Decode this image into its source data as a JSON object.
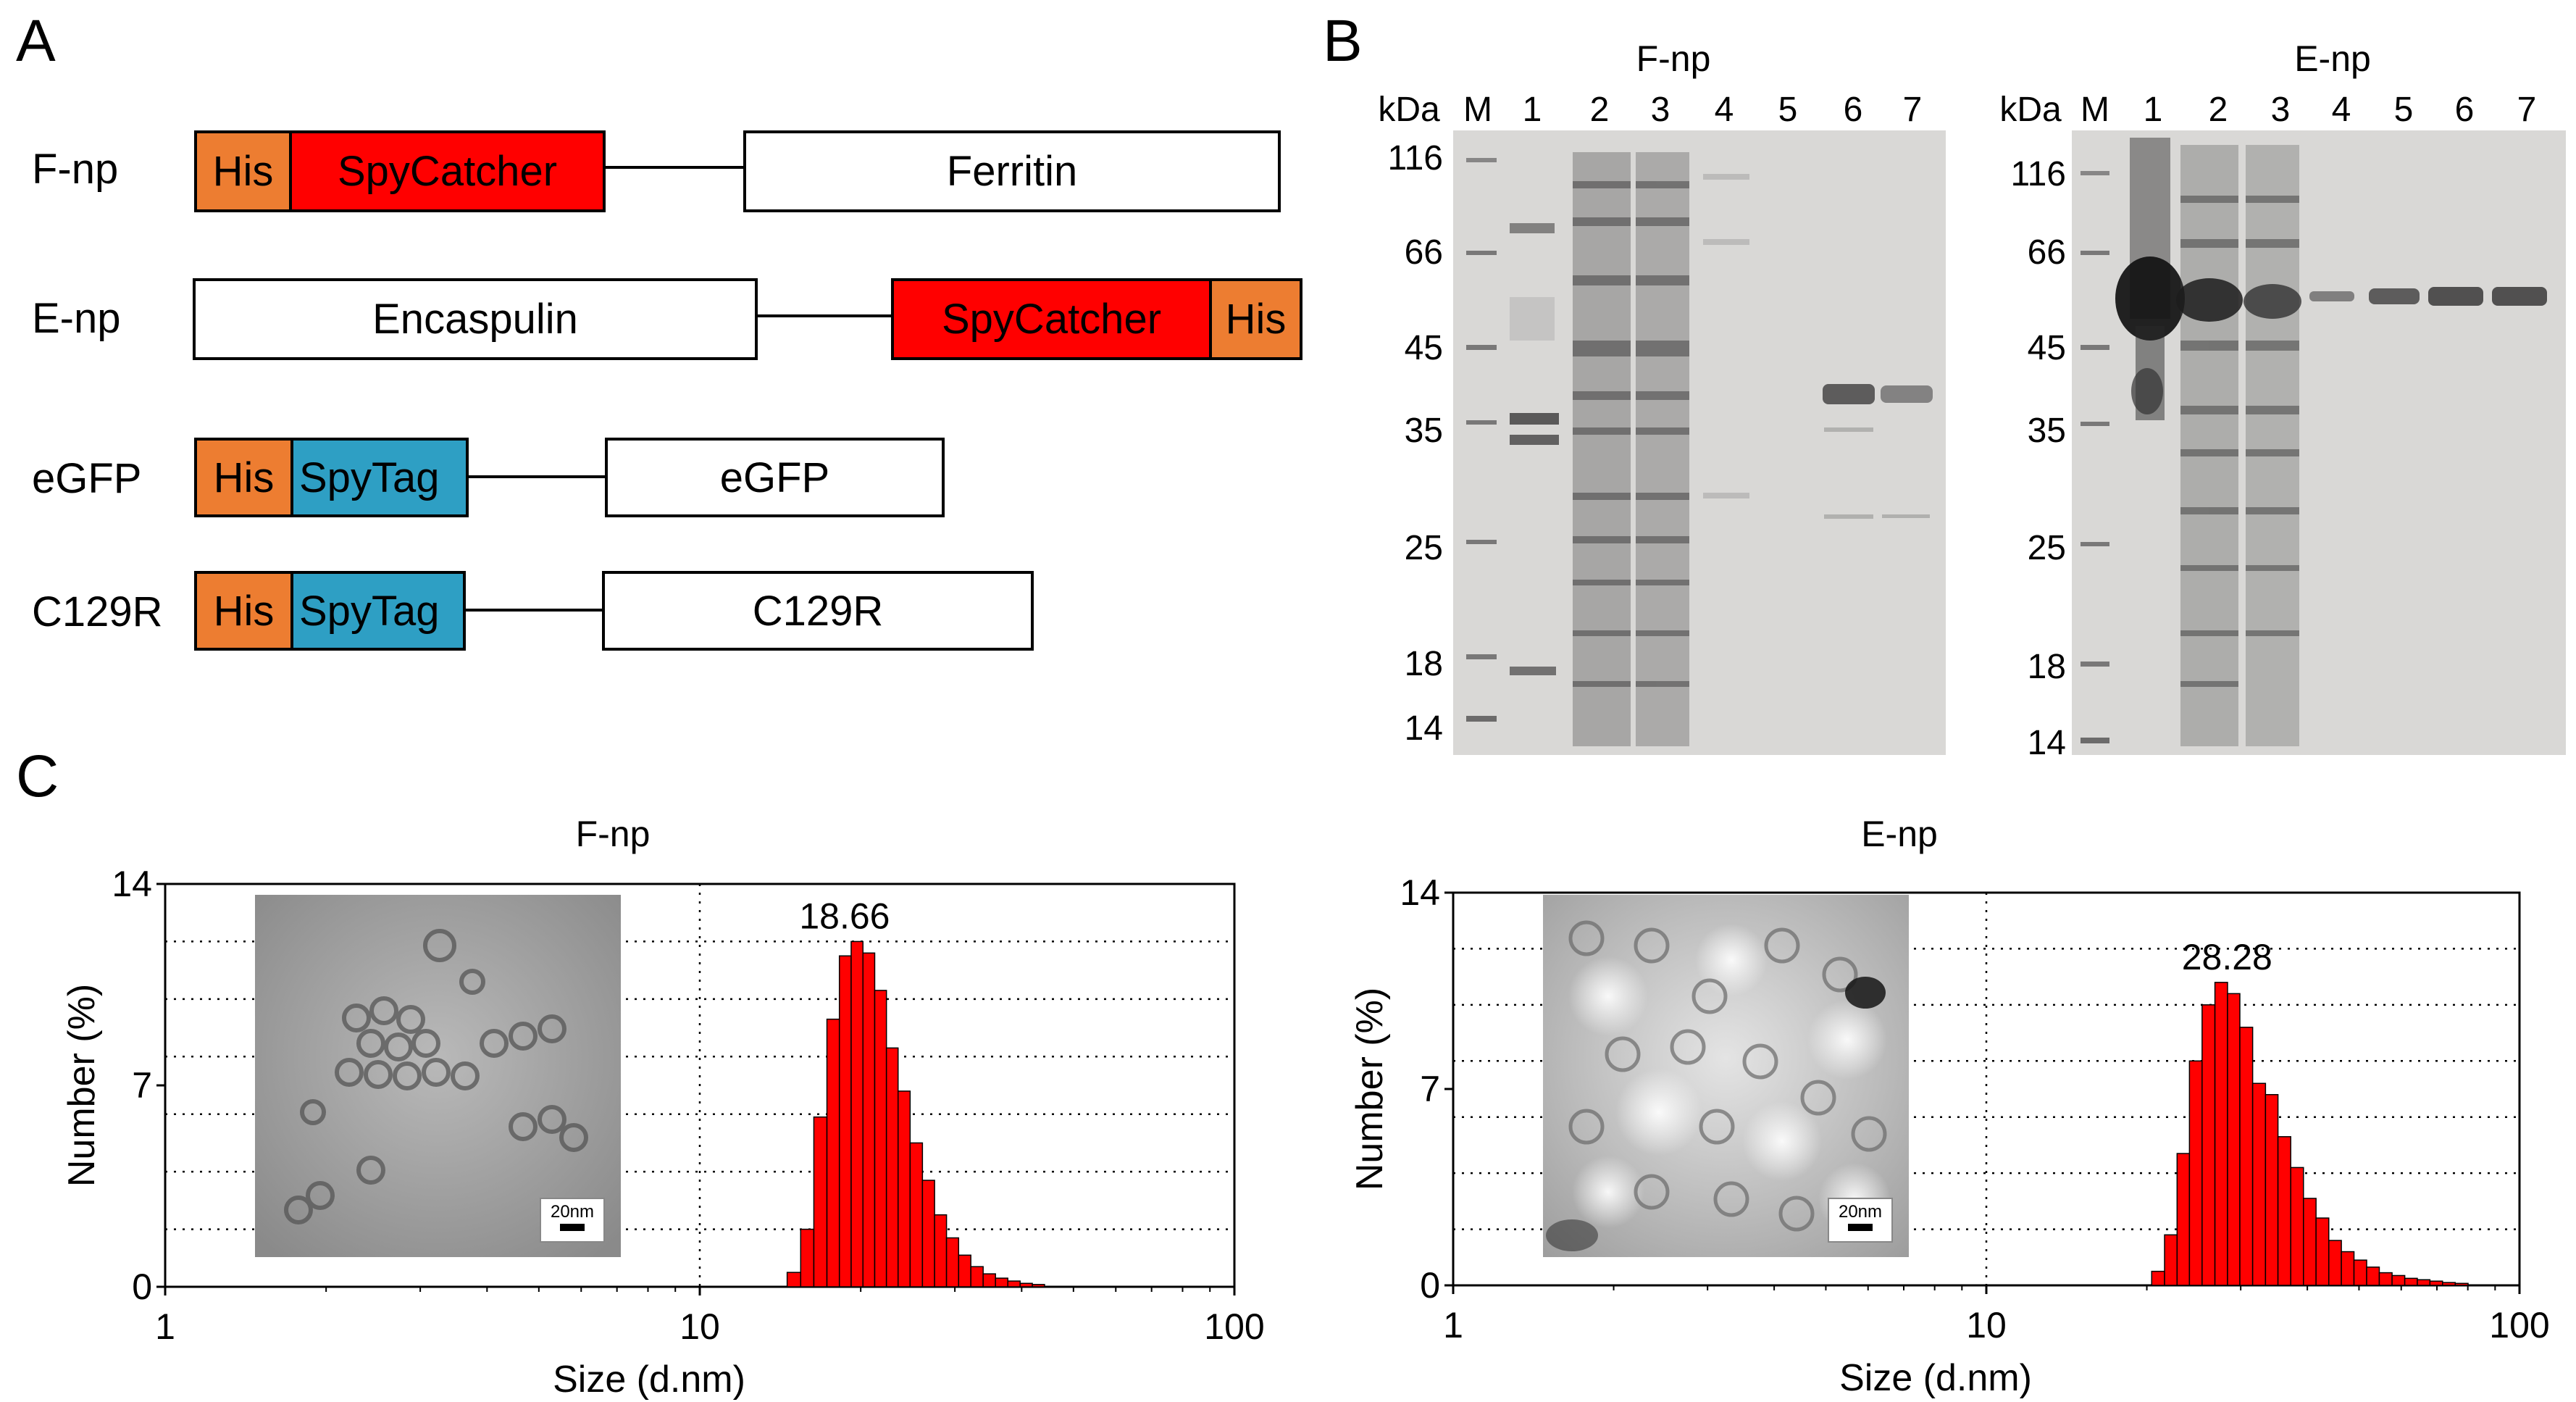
{
  "panels": {
    "a": "A",
    "b": "B",
    "c": "C"
  },
  "constructs": [
    {
      "name": "F-np",
      "segments": [
        "His",
        "SpyCatcher",
        "Ferritin"
      ]
    },
    {
      "name": "E-np",
      "segments": [
        "Encaspulin",
        "SpyCatcher",
        "His"
      ]
    },
    {
      "name": "eGFP",
      "segments": [
        "His",
        "SpyTag",
        "eGFP"
      ]
    },
    {
      "name": "C129R",
      "segments": [
        "His",
        "SpyTag",
        "C129R"
      ]
    }
  ],
  "colors": {
    "his": "#ED7D31",
    "spycatcher": "#FF0000",
    "spytag": "#2E9FC4",
    "bar": "#FF0000",
    "gel_bg": "#D9D8D6"
  },
  "gels": [
    {
      "title": "F-np",
      "kda_label": "kDa",
      "marker_label": "M",
      "lanes": [
        "1",
        "2",
        "3",
        "4",
        "5",
        "6",
        "7"
      ],
      "markers": [
        "116",
        "66",
        "45",
        "35",
        "25",
        "18",
        "14"
      ]
    },
    {
      "title": "E-np",
      "kda_label": "kDa",
      "marker_label": "M",
      "lanes": [
        "1",
        "2",
        "3",
        "4",
        "5",
        "6",
        "7"
      ],
      "markers": [
        "116",
        "66",
        "45",
        "35",
        "25",
        "18",
        "14"
      ]
    }
  ],
  "chart_data": [
    {
      "type": "bar",
      "title": "F-np",
      "xlabel": "Size (d.nm)",
      "ylabel": "Number (%)",
      "xscale": "log",
      "xlim": [
        1,
        100
      ],
      "ylim": [
        0,
        14
      ],
      "xticks": [
        "1",
        "10",
        "100"
      ],
      "yticks": [
        "0",
        "7",
        "14"
      ],
      "peak_label": "18.66",
      "grid": true,
      "inset": {
        "type": "TEM micrograph",
        "scale_bar": "20nm"
      },
      "x": [
        15.0,
        15.9,
        16.8,
        17.8,
        18.7,
        19.7,
        20.7,
        21.8,
        22.9,
        24.1,
        25.4,
        26.8,
        28.2,
        29.7,
        31.3,
        33.0,
        34.8,
        36.7,
        38.7,
        40.8,
        43.0
      ],
      "values": [
        0.5,
        2.0,
        5.9,
        9.3,
        11.5,
        12.0,
        11.6,
        10.3,
        8.3,
        6.8,
        5.0,
        3.7,
        2.5,
        1.7,
        1.1,
        0.7,
        0.45,
        0.3,
        0.2,
        0.12,
        0.08
      ]
    },
    {
      "type": "bar",
      "title": "E-np",
      "xlabel": "Size (d.nm)",
      "ylabel": "Number (%)",
      "xscale": "log",
      "xlim": [
        1,
        100
      ],
      "ylim": [
        0,
        14
      ],
      "xticks": [
        "1",
        "10",
        "100"
      ],
      "yticks": [
        "0",
        "7",
        "14"
      ],
      "peak_label": "28.28",
      "grid": true,
      "inset": {
        "type": "TEM micrograph",
        "scale_bar": "20nm"
      },
      "x": [
        21.0,
        22.2,
        23.4,
        24.7,
        26.1,
        27.6,
        29.1,
        30.7,
        32.5,
        34.3,
        36.2,
        38.3,
        40.4,
        42.7,
        45.1,
        47.6,
        50.3,
        53.1,
        56.1,
        59.3,
        62.6,
        66.1,
        69.8,
        73.7,
        77.9
      ],
      "values": [
        0.5,
        1.8,
        4.7,
        8.0,
        10.0,
        10.8,
        10.4,
        9.2,
        7.2,
        6.8,
        5.3,
        4.2,
        3.1,
        2.4,
        1.6,
        1.2,
        0.9,
        0.65,
        0.45,
        0.35,
        0.25,
        0.2,
        0.15,
        0.1,
        0.07
      ]
    }
  ]
}
